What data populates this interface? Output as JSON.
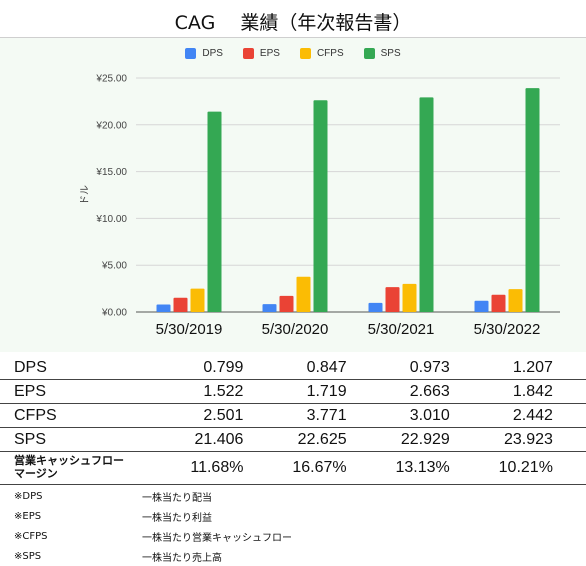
{
  "title": "CAG　 業績（年次報告書）",
  "chart_data": {
    "type": "bar",
    "categories": [
      "5/30/2019",
      "5/30/2020",
      "5/30/2021",
      "5/30/2022"
    ],
    "series": [
      {
        "name": "DPS",
        "color": "#4285f4",
        "values": [
          0.799,
          0.847,
          0.973,
          1.207
        ]
      },
      {
        "name": "EPS",
        "color": "#ea4335",
        "values": [
          1.522,
          1.719,
          2.663,
          1.842
        ]
      },
      {
        "name": "CFPS",
        "color": "#fbbc04",
        "values": [
          2.501,
          3.771,
          3.01,
          2.442
        ]
      },
      {
        "name": "SPS",
        "color": "#34a853",
        "values": [
          21.406,
          22.625,
          22.929,
          23.923
        ]
      }
    ],
    "ylabel": "ドル",
    "ylim": [
      0,
      25
    ],
    "yticks": [
      "¥0.00",
      "¥5.00",
      "¥10.00",
      "¥15.00",
      "¥20.00",
      "¥25.00"
    ],
    "legend_position": "top",
    "grid": true
  },
  "table": {
    "rows": [
      {
        "label": "DPS",
        "values": [
          "0.799",
          "0.847",
          "0.973",
          "1.207"
        ]
      },
      {
        "label": "EPS",
        "values": [
          "1.522",
          "1.719",
          "2.663",
          "1.842"
        ]
      },
      {
        "label": "CFPS",
        "values": [
          "2.501",
          "3.771",
          "3.010",
          "2.442"
        ]
      },
      {
        "label": "SPS",
        "values": [
          "21.406",
          "22.625",
          "22.929",
          "23.923"
        ]
      }
    ],
    "margin_row": {
      "label_line1": "営業キャッシュフロー",
      "label_line2": "マージン",
      "values": [
        "11.68%",
        "16.67%",
        "13.13%",
        "10.21%"
      ]
    }
  },
  "notes": [
    {
      "key": "※DPS",
      "text": "一株当たり配当"
    },
    {
      "key": "※EPS",
      "text": "一株当たり利益"
    },
    {
      "key": "※CFPS",
      "text": "一株当たり営業キャッシュフロー"
    },
    {
      "key": "※SPS",
      "text": "一株当たり売上高"
    }
  ]
}
